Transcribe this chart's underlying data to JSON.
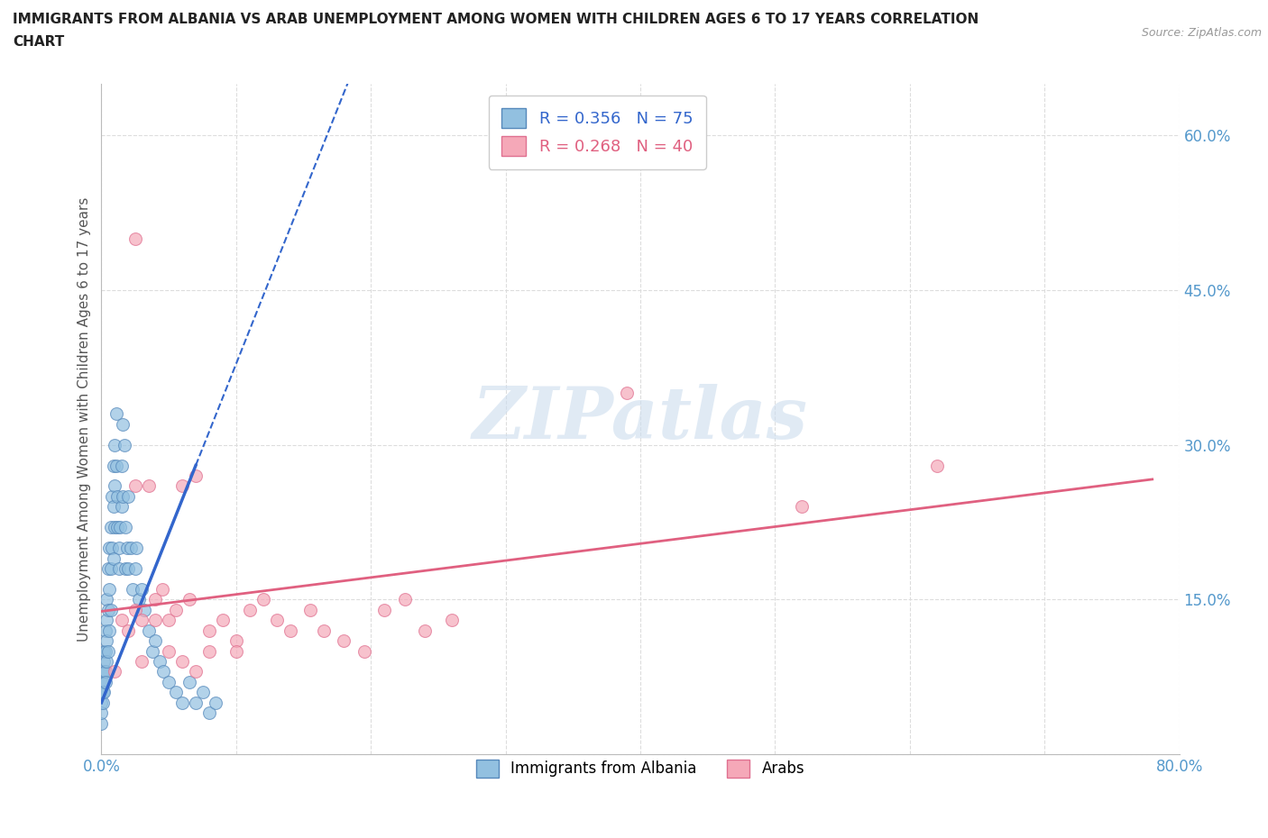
{
  "title_line1": "IMMIGRANTS FROM ALBANIA VS ARAB UNEMPLOYMENT AMONG WOMEN WITH CHILDREN AGES 6 TO 17 YEARS CORRELATION",
  "title_line2": "CHART",
  "source": "Source: ZipAtlas.com",
  "ylabel": "Unemployment Among Women with Children Ages 6 to 17 years",
  "xlim": [
    0,
    0.8
  ],
  "ylim": [
    0,
    0.65
  ],
  "xticks": [
    0.0,
    0.1,
    0.2,
    0.3,
    0.4,
    0.5,
    0.6,
    0.7,
    0.8
  ],
  "xticklabels": [
    "0.0%",
    "",
    "",
    "",
    "",
    "",
    "",
    "",
    "80.0%"
  ],
  "yticks": [
    0.0,
    0.15,
    0.3,
    0.45,
    0.6
  ],
  "yticklabels": [
    "",
    "15.0%",
    "30.0%",
    "45.0%",
    "60.0%"
  ],
  "albania_color": "#92C0E0",
  "albania_edge": "#5588BB",
  "arab_color": "#F5A8B8",
  "arab_edge": "#E07090",
  "albania_R": 0.356,
  "albania_N": 75,
  "arab_R": 0.268,
  "arab_N": 40,
  "albania_trendline_color": "#3366CC",
  "arab_trendline_color": "#E06080",
  "watermark": "ZIPatlas",
  "albania_x": [
    0.0,
    0.0,
    0.0,
    0.0,
    0.0,
    0.001,
    0.001,
    0.001,
    0.001,
    0.002,
    0.002,
    0.002,
    0.002,
    0.003,
    0.003,
    0.003,
    0.003,
    0.004,
    0.004,
    0.004,
    0.004,
    0.005,
    0.005,
    0.005,
    0.006,
    0.006,
    0.006,
    0.007,
    0.007,
    0.007,
    0.008,
    0.008,
    0.009,
    0.009,
    0.009,
    0.01,
    0.01,
    0.01,
    0.011,
    0.011,
    0.012,
    0.012,
    0.013,
    0.013,
    0.014,
    0.015,
    0.015,
    0.016,
    0.016,
    0.017,
    0.018,
    0.018,
    0.019,
    0.02,
    0.02,
    0.022,
    0.023,
    0.025,
    0.026,
    0.028,
    0.03,
    0.032,
    0.035,
    0.038,
    0.04,
    0.043,
    0.046,
    0.05,
    0.055,
    0.06,
    0.065,
    0.07,
    0.075,
    0.08,
    0.085
  ],
  "albania_y": [
    0.05,
    0.07,
    0.03,
    0.06,
    0.04,
    0.08,
    0.06,
    0.05,
    0.07,
    0.1,
    0.08,
    0.09,
    0.06,
    0.12,
    0.1,
    0.08,
    0.07,
    0.15,
    0.13,
    0.11,
    0.09,
    0.18,
    0.14,
    0.1,
    0.2,
    0.16,
    0.12,
    0.22,
    0.18,
    0.14,
    0.25,
    0.2,
    0.28,
    0.24,
    0.19,
    0.3,
    0.26,
    0.22,
    0.33,
    0.28,
    0.25,
    0.22,
    0.2,
    0.18,
    0.22,
    0.28,
    0.24,
    0.32,
    0.25,
    0.3,
    0.22,
    0.18,
    0.2,
    0.25,
    0.18,
    0.2,
    0.16,
    0.18,
    0.2,
    0.15,
    0.16,
    0.14,
    0.12,
    0.1,
    0.11,
    0.09,
    0.08,
    0.07,
    0.06,
    0.05,
    0.07,
    0.05,
    0.06,
    0.04,
    0.05
  ],
  "arab_x": [
    0.01,
    0.015,
    0.02,
    0.025,
    0.03,
    0.035,
    0.04,
    0.045,
    0.05,
    0.055,
    0.06,
    0.065,
    0.07,
    0.08,
    0.09,
    0.1,
    0.11,
    0.12,
    0.13,
    0.14,
    0.155,
    0.165,
    0.18,
    0.195,
    0.21,
    0.225,
    0.24,
    0.26,
    0.03,
    0.05,
    0.07,
    0.1,
    0.025,
    0.04,
    0.06,
    0.08,
    0.39,
    0.52,
    0.62,
    0.025
  ],
  "arab_y": [
    0.08,
    0.13,
    0.12,
    0.14,
    0.13,
    0.26,
    0.15,
    0.16,
    0.13,
    0.14,
    0.26,
    0.15,
    0.27,
    0.12,
    0.13,
    0.11,
    0.14,
    0.15,
    0.13,
    0.12,
    0.14,
    0.12,
    0.11,
    0.1,
    0.14,
    0.15,
    0.12,
    0.13,
    0.09,
    0.1,
    0.08,
    0.1,
    0.26,
    0.13,
    0.09,
    0.1,
    0.35,
    0.24,
    0.28,
    0.5
  ]
}
